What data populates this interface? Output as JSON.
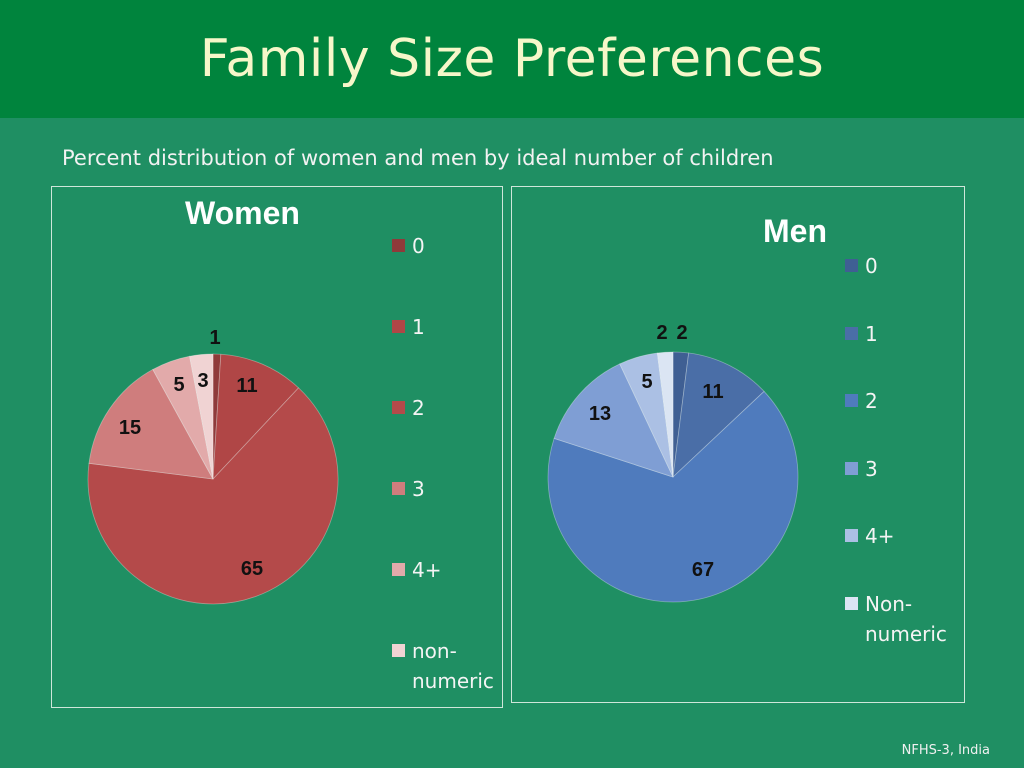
{
  "header": {
    "title": "Family Size Preferences"
  },
  "subtitle": "Percent distribution of women and men by ideal number of children",
  "source": "NFHS-3, India",
  "chart_data": [
    {
      "type": "pie",
      "title": "Women",
      "categories": [
        "0",
        "1",
        "2",
        "3",
        "4+",
        "non-\nnumeric"
      ],
      "values": [
        1,
        11,
        65,
        15,
        5,
        3
      ],
      "colors": [
        "#8f3a3a",
        "#b04646",
        "#b44a4a",
        "#cf7d7d",
        "#e2aaaa",
        "#f0d3d3"
      ],
      "legend_position": "right"
    },
    {
      "type": "pie",
      "title": "Men",
      "categories": [
        "0",
        "1",
        "2",
        "3",
        "4+",
        "Non-\nnumeric"
      ],
      "values": [
        2,
        11,
        67,
        13,
        5,
        2
      ],
      "colors": [
        "#3f5f93",
        "#4a6ea7",
        "#4f7bbd",
        "#7f9ed4",
        "#abc0e4",
        "#dbe5f3"
      ],
      "legend_position": "right"
    }
  ]
}
